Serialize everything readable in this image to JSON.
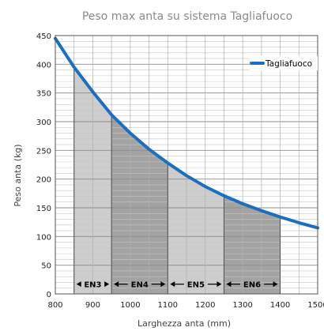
{
  "chart_data": {
    "type": "line",
    "title": "Peso max anta su sistema Tagliafuoco",
    "xlabel": "Larghezza anta (mm)",
    "ylabel": "Peso anta (kg)",
    "xlim": [
      800,
      1500
    ],
    "ylim": [
      0,
      450
    ],
    "x_ticks": [
      800,
      900,
      1000,
      1100,
      1200,
      1300,
      1400,
      1500
    ],
    "y_ticks": [
      0,
      50,
      100,
      150,
      200,
      250,
      300,
      350,
      400,
      450
    ],
    "x_tick_labels": [
      "800",
      "900",
      "1000",
      "1100",
      "1200",
      "1300",
      "1400",
      "1500"
    ],
    "y_tick_labels": [
      "0",
      "50",
      "100",
      "150",
      "200",
      "250",
      "300",
      "350",
      "400",
      "450"
    ],
    "grid": true,
    "legend_position": "top-right",
    "series": [
      {
        "name": "Tagliafuoco",
        "color": "#1a6fc0",
        "points": [
          {
            "x": 800,
            "y": 445
          },
          {
            "x": 850,
            "y": 395
          },
          {
            "x": 900,
            "y": 352
          },
          {
            "x": 950,
            "y": 312
          },
          {
            "x": 1000,
            "y": 280
          },
          {
            "x": 1050,
            "y": 252
          },
          {
            "x": 1100,
            "y": 228
          },
          {
            "x": 1150,
            "y": 206
          },
          {
            "x": 1200,
            "y": 187
          },
          {
            "x": 1250,
            "y": 171
          },
          {
            "x": 1300,
            "y": 157
          },
          {
            "x": 1350,
            "y": 145
          },
          {
            "x": 1400,
            "y": 134
          },
          {
            "x": 1450,
            "y": 124
          },
          {
            "x": 1500,
            "y": 115
          }
        ]
      }
    ],
    "regions": [
      {
        "label": "EN3",
        "x_start": 850,
        "x_end": 950,
        "color": "#cdcdcd"
      },
      {
        "label": "EN4",
        "x_start": 950,
        "x_end": 1100,
        "color": "#a3a3a3"
      },
      {
        "label": "EN5",
        "x_start": 1100,
        "x_end": 1250,
        "color": "#cdcdcd"
      },
      {
        "label": "EN6",
        "x_start": 1250,
        "x_end": 1400,
        "color": "#a3a3a3"
      }
    ],
    "region_label_y": 17
  }
}
